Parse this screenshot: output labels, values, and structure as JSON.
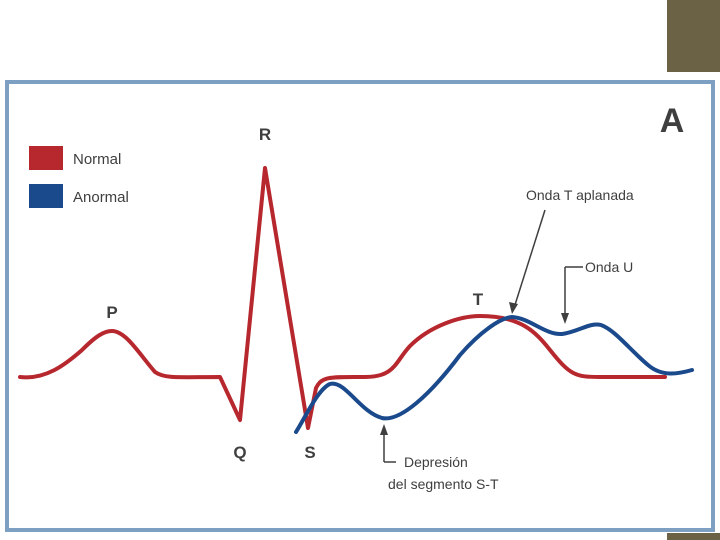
{
  "panel_letter": "A",
  "legend": [
    {
      "label": "Normal",
      "color": "#b7282e"
    },
    {
      "label": "Anormal",
      "color": "#1b4a8c"
    }
  ],
  "wave_labels": {
    "p": "P",
    "q": "Q",
    "r": "R",
    "s": "S",
    "t": "T"
  },
  "annotations": {
    "flat_t": "Onda T aplanada",
    "u_wave": "Onda U",
    "st_depression_line1": "Depresión",
    "st_depression_line2": "del segmento S-T"
  },
  "colors": {
    "accent_letter": "#e23b3b",
    "frame_border": "#7da0c2",
    "corner_block": "#6b6144",
    "text": "#3f3f3f"
  }
}
